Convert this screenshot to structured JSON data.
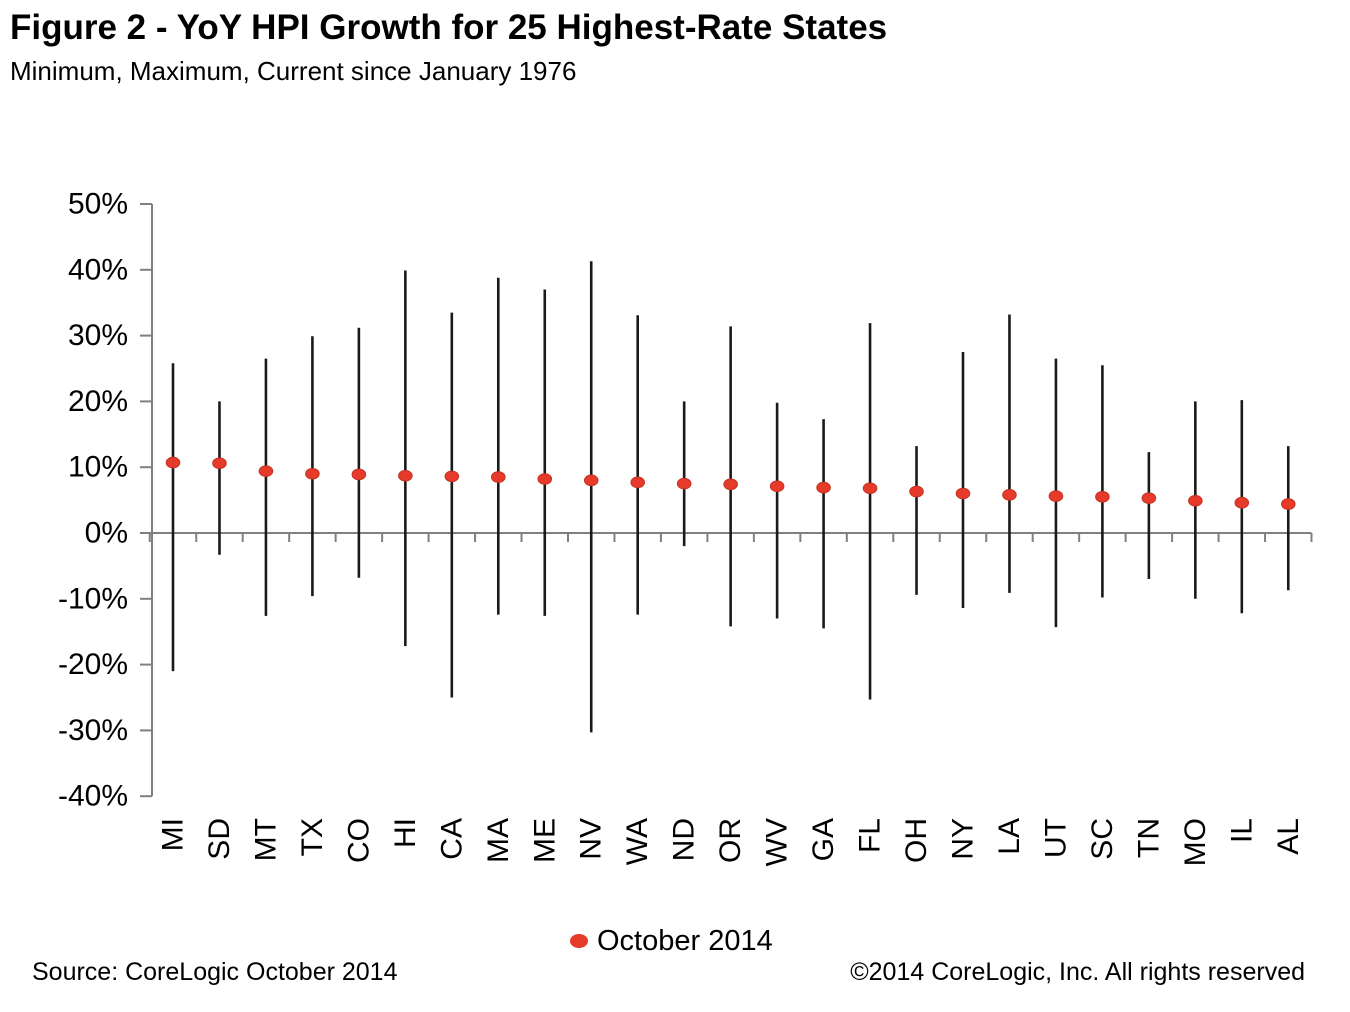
{
  "title": "Figure 2 - YoY HPI Growth for 25 Highest-Rate States",
  "subtitle": "Minimum, Maximum, Current since January 1976",
  "legend": {
    "label": "October 2014"
  },
  "footer": {
    "source": "Source: CoreLogic October 2014",
    "copyright": "©2014 CoreLogic, Inc. All rights reserved"
  },
  "colors": {
    "marker": "#e63b2a",
    "range_line": "#1a1a1a",
    "axis": "#808080",
    "text": "#000000"
  },
  "chart_data": {
    "type": "scatter",
    "variant": "min-max-current-range",
    "title": "Figure 2 - YoY HPI Growth for 25 Highest-Rate States",
    "subtitle": "Minimum, Maximum, Current since January 1976",
    "xlabel": "",
    "ylabel": "",
    "ylim": [
      -40,
      50
    ],
    "grid": false,
    "legend_position": "bottom-center",
    "y_ticks": [
      50,
      40,
      30,
      20,
      10,
      0,
      -10,
      -20,
      -30,
      -40
    ],
    "y_tick_labels": [
      "50%",
      "40%",
      "30%",
      "20%",
      "10%",
      "0%",
      "-10%",
      "-20%",
      "-30%",
      "-40%"
    ],
    "categories": [
      "MI",
      "SD",
      "MT",
      "TX",
      "CO",
      "HI",
      "CA",
      "MA",
      "ME",
      "NV",
      "WA",
      "ND",
      "OR",
      "WV",
      "GA",
      "FL",
      "OH",
      "NY",
      "LA",
      "UT",
      "SC",
      "TN",
      "MO",
      "IL",
      "AL"
    ],
    "series": [
      {
        "name": "Maximum",
        "values": [
          25.8,
          20.0,
          26.5,
          29.9,
          31.2,
          39.9,
          33.5,
          38.8,
          37.0,
          41.3,
          33.1,
          20.0,
          31.4,
          19.8,
          17.3,
          31.9,
          13.2,
          27.5,
          33.2,
          26.5,
          25.5,
          12.3,
          20.0,
          20.2,
          13.2
        ]
      },
      {
        "name": "Minimum",
        "values": [
          -21.0,
          -3.3,
          -12.6,
          -9.6,
          -6.8,
          -17.2,
          -25.0,
          -12.4,
          -12.6,
          -30.3,
          -12.4,
          -2.0,
          -14.2,
          -13.0,
          -14.5,
          -25.3,
          -9.4,
          -11.4,
          -9.1,
          -14.3,
          -9.8,
          -7.0,
          -10.0,
          -12.2,
          -8.7
        ]
      },
      {
        "name": "October 2014",
        "values": [
          10.7,
          10.6,
          9.4,
          9.0,
          8.9,
          8.7,
          8.6,
          8.5,
          8.2,
          8.0,
          7.7,
          7.5,
          7.4,
          7.1,
          6.9,
          6.8,
          6.3,
          6.0,
          5.8,
          5.6,
          5.5,
          5.3,
          4.9,
          4.6,
          4.4
        ]
      }
    ]
  }
}
